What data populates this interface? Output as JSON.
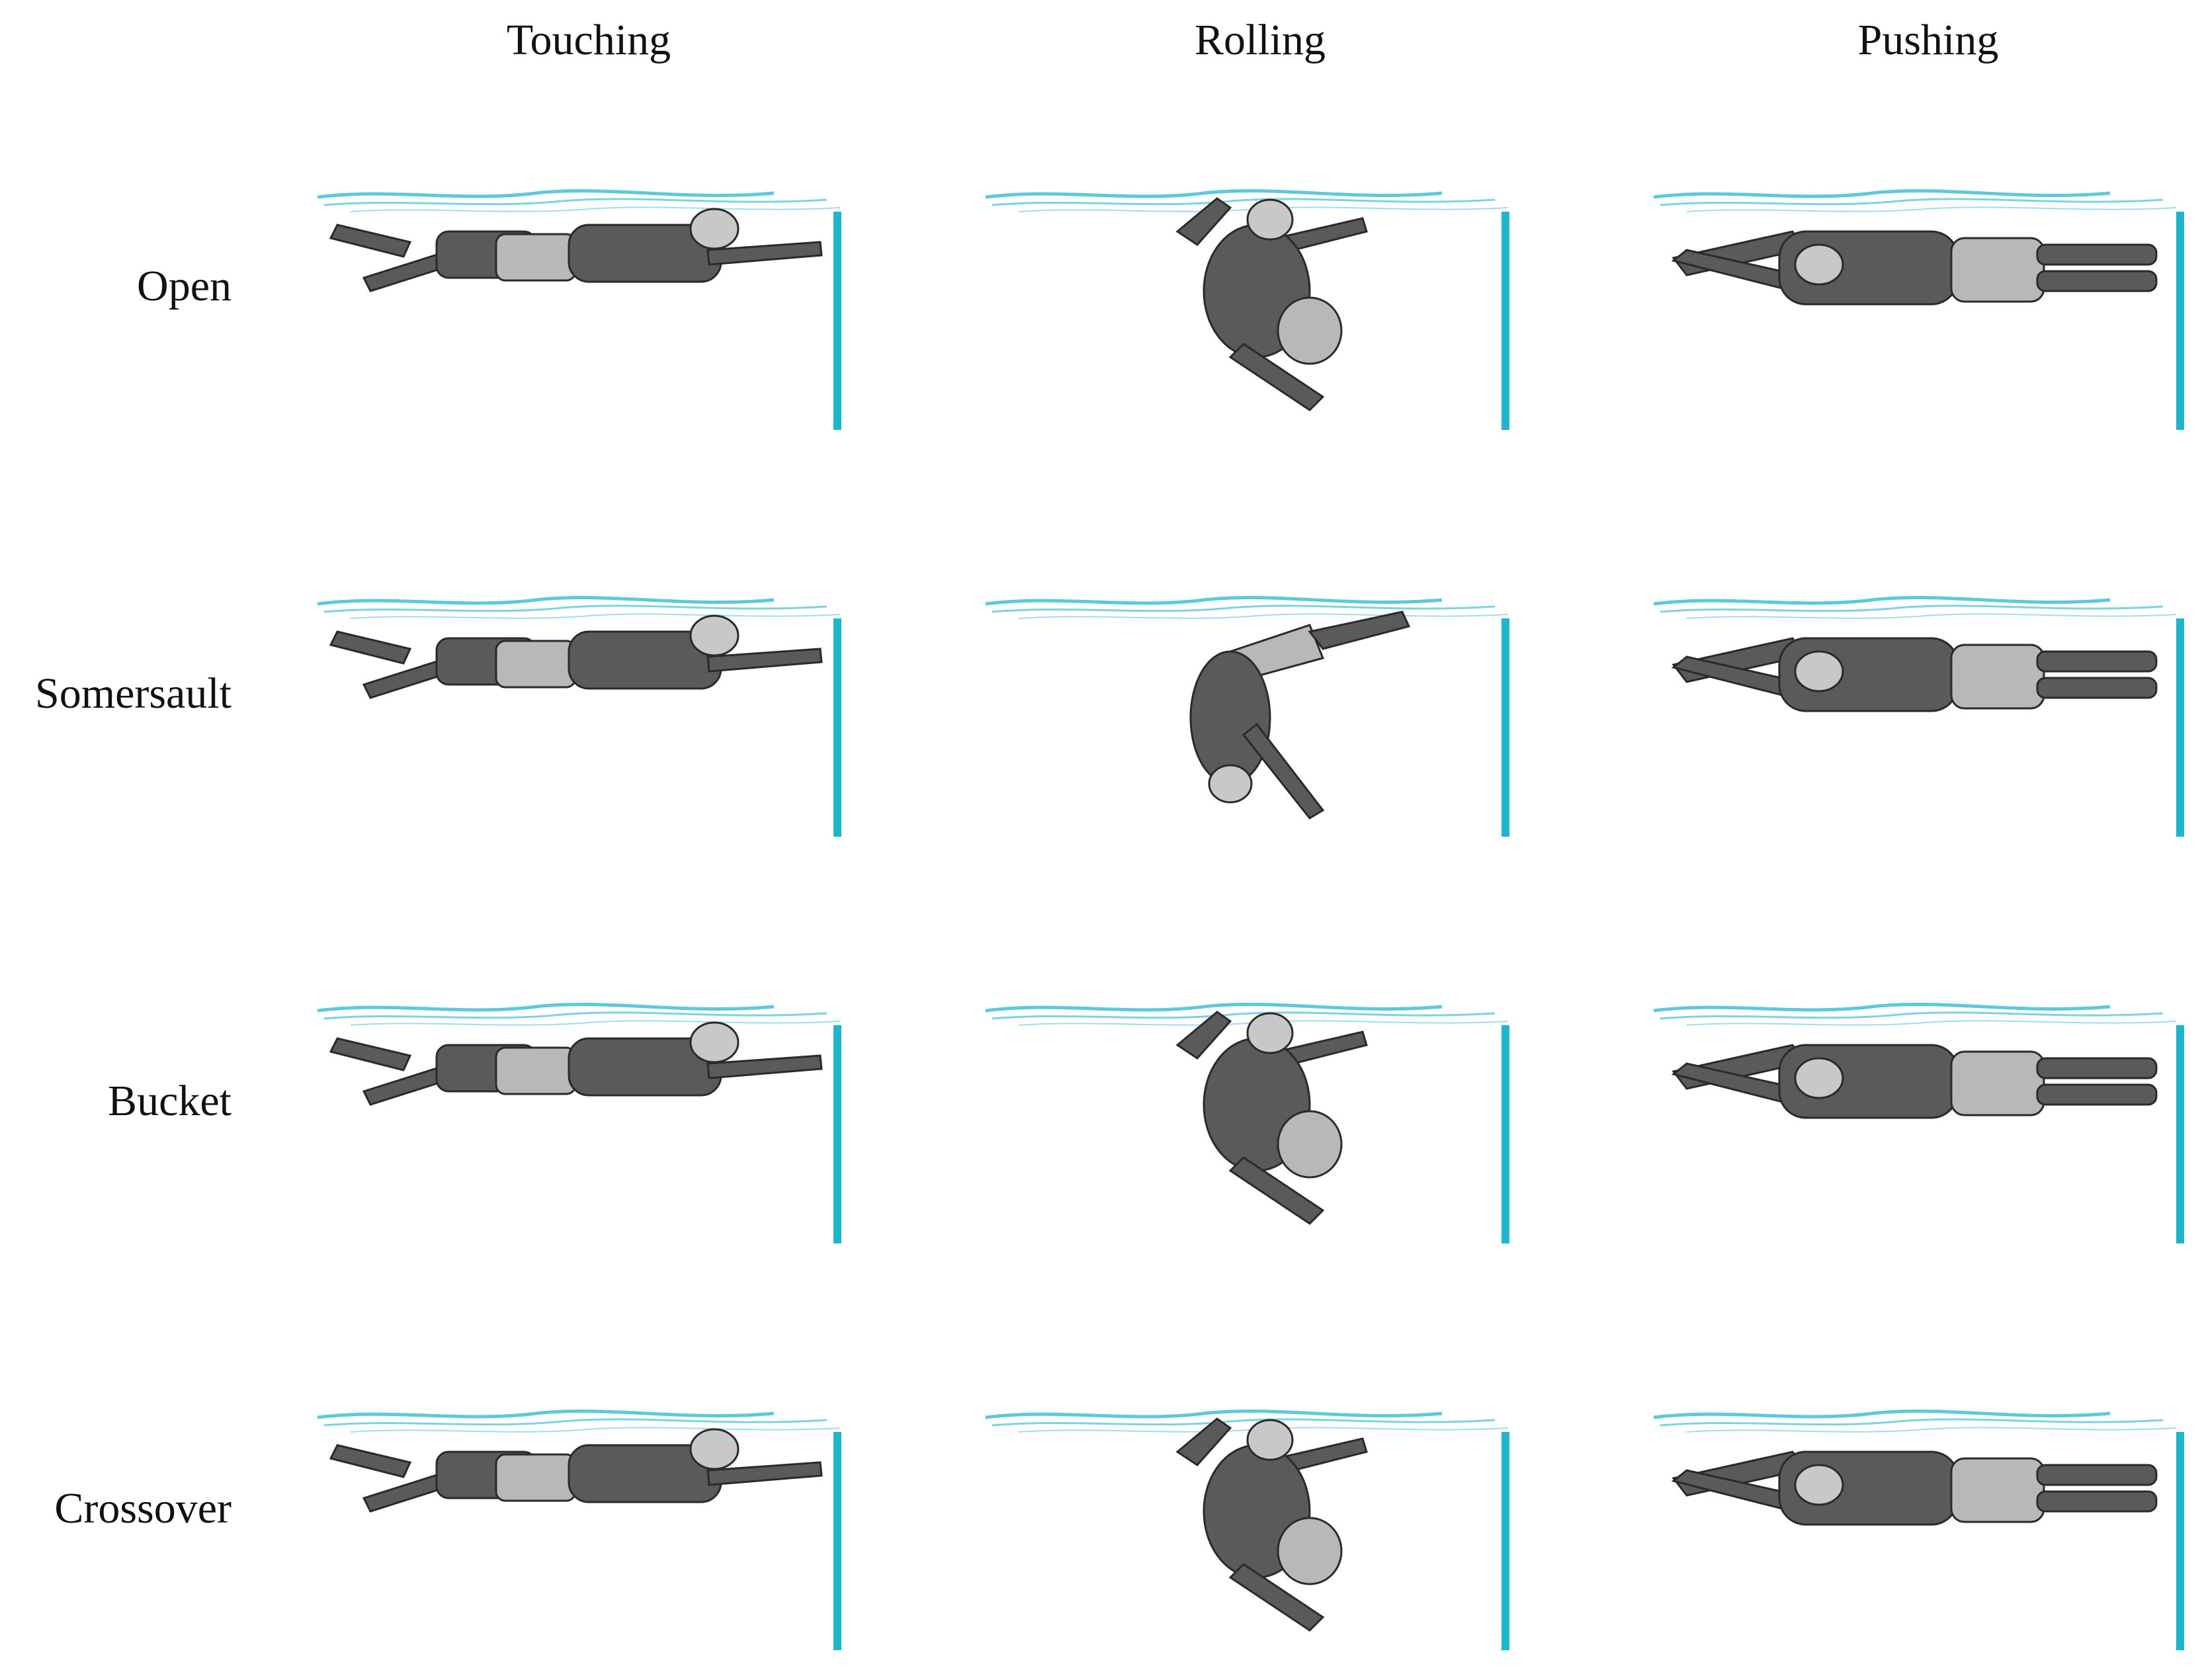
{
  "columns": [
    {
      "key": "touching",
      "label": "Touching"
    },
    {
      "key": "rolling",
      "label": "Rolling"
    },
    {
      "key": "pushing",
      "label": "Pushing"
    }
  ],
  "rows": [
    {
      "key": "open",
      "label": "Open"
    },
    {
      "key": "somersault",
      "label": "Somersault"
    },
    {
      "key": "bucket",
      "label": "Bucket"
    },
    {
      "key": "crossover",
      "label": "Crossover"
    }
  ],
  "colors": {
    "water": "#5ec8dc",
    "wall": "#1fb6cc",
    "body": "#5a5a5a",
    "body_outline": "#2a2a2a",
    "suit": "#b8b8b8",
    "cap": "#c8c8c8"
  }
}
